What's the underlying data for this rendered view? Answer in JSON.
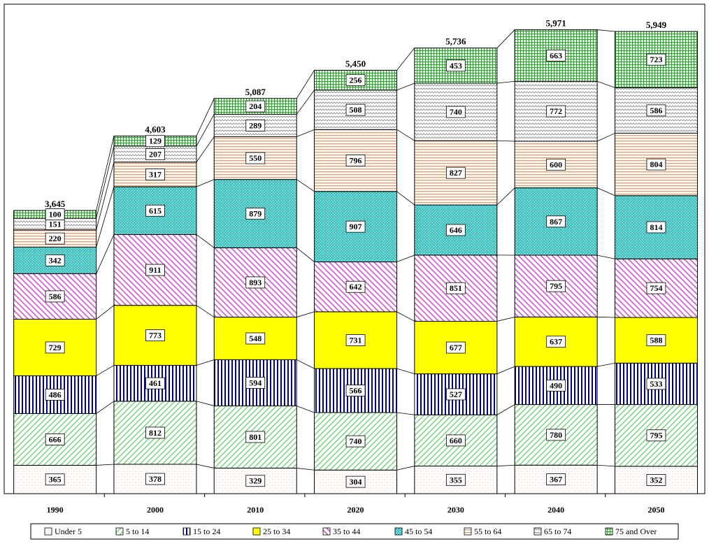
{
  "chart_data": {
    "type": "bar",
    "stacked": true,
    "categories": [
      "1990",
      "2000",
      "2010",
      "2020",
      "2030",
      "2040",
      "2050"
    ],
    "series": [
      {
        "name": "Under 5",
        "values": [
          365,
          378,
          329,
          304,
          355,
          367,
          352
        ],
        "color": "#f4d2c4",
        "pattern": "dots"
      },
      {
        "name": "5 to 14",
        "values": [
          666,
          812,
          801,
          740,
          660,
          780,
          795
        ],
        "color": "#7fd67f",
        "pattern": "diagonal"
      },
      {
        "name": "15 to 24",
        "values": [
          486,
          461,
          594,
          566,
          527,
          490,
          533
        ],
        "color": "#00008b",
        "pattern": "vertical"
      },
      {
        "name": "25 to 34",
        "values": [
          729,
          773,
          548,
          731,
          677,
          637,
          588
        ],
        "color": "#ffff00",
        "pattern": "solid"
      },
      {
        "name": "35 to 44",
        "values": [
          586,
          911,
          893,
          642,
          851,
          795,
          754
        ],
        "color": "#cc66cc",
        "pattern": "backdiagonal"
      },
      {
        "name": "45 to 54",
        "values": [
          342,
          615,
          879,
          907,
          646,
          867,
          814
        ],
        "color": "#33cccc",
        "pattern": "dense"
      },
      {
        "name": "55 to 64",
        "values": [
          220,
          317,
          550,
          796,
          827,
          600,
          804
        ],
        "color": "#e8a070",
        "pattern": "horizontal"
      },
      {
        "name": "65 to 74",
        "values": [
          151,
          207,
          289,
          508,
          740,
          772,
          586
        ],
        "color": "#999999",
        "pattern": "wave"
      },
      {
        "name": "75 and Over",
        "values": [
          100,
          129,
          204,
          256,
          453,
          663,
          723
        ],
        "color": "#339933",
        "pattern": "grid"
      }
    ],
    "totals": [
      "3,645",
      "4,603",
      "5,087",
      "5,450",
      "5,736",
      "5,971",
      "5,949"
    ],
    "ylim": [
      0,
      6300
    ],
    "grid": false,
    "legend": "bottom",
    "title": "",
    "xlabel": "",
    "ylabel": ""
  }
}
